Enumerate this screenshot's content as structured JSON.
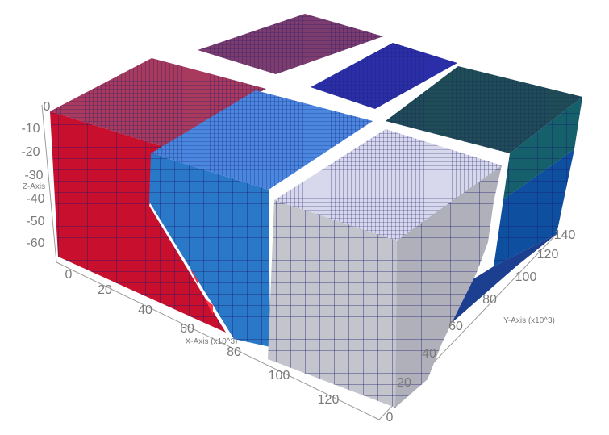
{
  "axes": {
    "x": {
      "title": "X-Axis (x10^3)",
      "ticks": [
        "0",
        "20",
        "40",
        "60",
        "80",
        "100",
        "120"
      ]
    },
    "y": {
      "title": "Y-Axis (x10^3)",
      "ticks": [
        "0",
        "20",
        "40",
        "60",
        "80",
        "100",
        "120",
        "140"
      ]
    },
    "z": {
      "title": "Z-Axis",
      "ticks": [
        "0",
        "-10",
        "-20",
        "-30",
        "-40",
        "-50",
        "-60"
      ]
    }
  },
  "blocks": [
    {
      "id": "back-purple",
      "top": "#7c3d6e",
      "left": "#6a2e5c",
      "right": "#5a2550"
    },
    {
      "id": "back-dark-blue",
      "top": "#2a2fa8",
      "left": "#23279a",
      "right": "#1e2290"
    },
    {
      "id": "back-dark-green",
      "top": "#1f4d55",
      "left": "#1a4048",
      "right": "#15606a"
    },
    {
      "id": "front-red",
      "top": "#a83a5e",
      "left": "#c8102e",
      "right": "#b00020"
    },
    {
      "id": "mid-blue",
      "top": "#4a88e0",
      "left": "#2a78c8",
      "right": "#1e68b8"
    },
    {
      "id": "front-white",
      "top": "#d8d8ec",
      "left": "#c4c4cc",
      "right": "#b0b0ba"
    }
  ],
  "colors": {
    "mesh_line": "#1a1a6e",
    "axis_line": "#9a9a9a",
    "background": "#ffffff"
  }
}
